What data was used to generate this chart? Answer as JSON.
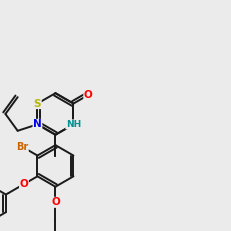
{
  "background_color": "#ebebeb",
  "bond_color": "#1a1a1a",
  "lw": 1.4,
  "S_color": "#b8b800",
  "N_color": "#0000ee",
  "NH_color": "#009090",
  "O_color": "#ff0000",
  "Br_color": "#cc6600",
  "font_size": 7.5,
  "scale": 1.0
}
